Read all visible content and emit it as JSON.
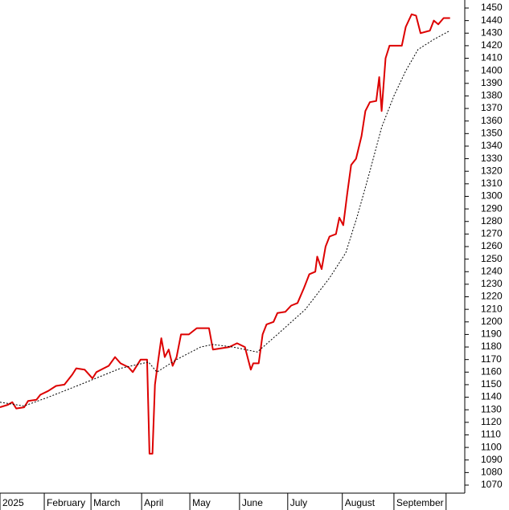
{
  "chart_data": {
    "type": "line",
    "xlim": [
      0,
      9.45
    ],
    "ylim": [
      1063.6,
      1456.4
    ],
    "xticks": [
      {
        "value": 0,
        "label": "2025"
      },
      {
        "value": 0.9,
        "label": "February"
      },
      {
        "value": 1.85,
        "label": "March"
      },
      {
        "value": 2.88,
        "label": "April"
      },
      {
        "value": 3.86,
        "label": "May"
      },
      {
        "value": 4.87,
        "label": "June"
      },
      {
        "value": 5.85,
        "label": "July"
      },
      {
        "value": 6.96,
        "label": "August"
      },
      {
        "value": 8.01,
        "label": "September"
      },
      9.07
    ],
    "yticks": [
      1070,
      1080,
      1090,
      1100,
      1110,
      1120,
      1130,
      1140,
      1150,
      1160,
      1170,
      1180,
      1190,
      1200,
      1210,
      1220,
      1230,
      1240,
      1250,
      1260,
      1270,
      1280,
      1290,
      1300,
      1310,
      1320,
      1330,
      1340,
      1350,
      1360,
      1370,
      1380,
      1390,
      1400,
      1410,
      1420,
      1430,
      1440,
      1450
    ],
    "series": [
      {
        "color": "#dd0000",
        "style": "solid",
        "x": [
          0,
          0.16,
          0.25,
          0.33,
          0.49,
          0.57,
          0.74,
          0.82,
          0.98,
          1.14,
          1.31,
          1.47,
          1.55,
          1.72,
          1.88,
          1.96,
          2.21,
          2.34,
          2.45,
          2.61,
          2.7,
          2.86,
          2.99,
          3.04,
          3.1,
          3.15,
          3.22,
          3.28,
          3.35,
          3.43,
          3.51,
          3.59,
          3.68,
          3.84,
          4,
          4.25,
          4.33,
          4.66,
          4.82,
          4.98,
          5.1,
          5.15,
          5.26,
          5.34,
          5.42,
          5.56,
          5.64,
          5.8,
          5.92,
          6.05,
          6.18,
          6.29,
          6.41,
          6.45,
          6.54,
          6.62,
          6.7,
          6.83,
          6.9,
          6.98,
          7.06,
          7.14,
          7.24,
          7.35,
          7.43,
          7.52,
          7.65,
          7.71,
          7.76,
          7.84,
          7.92,
          8.17,
          8.25,
          8.37,
          8.46,
          8.55,
          8.74,
          8.82,
          8.91,
          9.02,
          9.15
        ],
        "values": [
          1132,
          1134,
          1136,
          1131,
          1132,
          1137,
          1138,
          1142,
          1145,
          1149,
          1150,
          1158,
          1163,
          1162,
          1155,
          1160,
          1165,
          1172,
          1167,
          1164,
          1160,
          1170,
          1170,
          1095,
          1095,
          1150,
          1170,
          1187,
          1172,
          1178,
          1165,
          1172,
          1190,
          1190,
          1195,
          1195,
          1178,
          1180,
          1183,
          1180,
          1162,
          1167,
          1167,
          1190,
          1198,
          1200,
          1207,
          1208,
          1213,
          1215,
          1227,
          1238,
          1240,
          1252,
          1242,
          1260,
          1268,
          1270,
          1283,
          1277,
          1302,
          1325,
          1330,
          1348,
          1368,
          1375,
          1376,
          1395,
          1368,
          1410,
          1420,
          1420,
          1435,
          1445,
          1444,
          1430,
          1432,
          1440,
          1437,
          1442,
          1442
        ]
      },
      {
        "color": "#000000",
        "style": "dotted",
        "x": [
          0,
          0.49,
          0.98,
          1.63,
          2.45,
          3.02,
          3.19,
          3.59,
          4.08,
          4.33,
          4.74,
          5.23,
          5.64,
          6.21,
          6.7,
          7.03,
          7.27,
          7.52,
          7.76,
          8.01,
          8.25,
          8.5,
          8.82,
          9.15
        ],
        "values": [
          1136,
          1133,
          1140,
          1150,
          1163,
          1168,
          1160,
          1170,
          1180,
          1182,
          1180,
          1176,
          1190,
          1210,
          1235,
          1255,
          1285,
          1320,
          1355,
          1380,
          1400,
          1417,
          1425,
          1432
        ]
      }
    ]
  }
}
